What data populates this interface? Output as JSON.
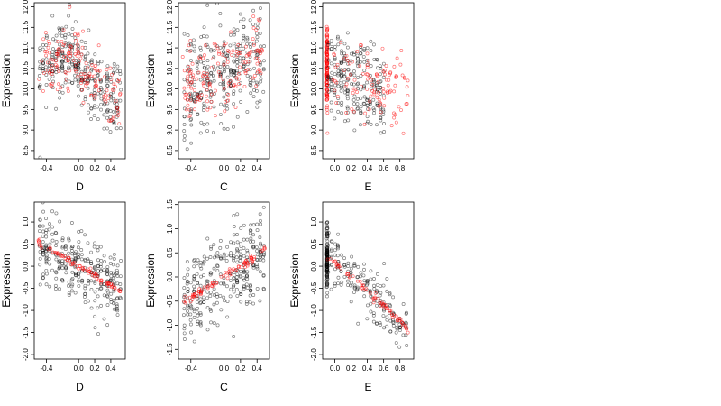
{
  "figure": {
    "background": "#ffffff",
    "colors": {
      "points_black": "#000000",
      "points_red": "#ff0000"
    }
  },
  "chart_data": [
    {
      "type": "scatter",
      "xlabel": "D",
      "ylabel": "Expression",
      "xlim": [
        -0.55,
        0.58
      ],
      "ylim": [
        8.3,
        12.1
      ],
      "xticks": [
        -0.4,
        0.0,
        0.2,
        0.4
      ],
      "xtick_labels": [
        "-0.4",
        "0.0",
        "0.2",
        "0.4"
      ],
      "yticks": [
        8.5,
        9.0,
        9.5,
        10.0,
        10.5,
        11.0,
        11.5,
        12.0
      ],
      "ytick_labels": [
        "8.5",
        "9.0",
        "9.5",
        "10.0",
        "10.5",
        "11.0",
        "11.5",
        "12.0"
      ],
      "series": [
        {
          "color": "#000000",
          "n": 300,
          "x_range": [
            -0.5,
            0.52
          ],
          "trend": [
            [
              -0.5,
              10.4
            ],
            [
              -0.1,
              10.9
            ],
            [
              0.0,
              10.6
            ],
            [
              0.2,
              10.0
            ],
            [
              0.5,
              9.7
            ]
          ],
          "spread": 0.5
        },
        {
          "color": "#ff0000",
          "n": 150,
          "x_range": [
            -0.5,
            0.52
          ],
          "trend": [
            [
              -0.5,
              10.5
            ],
            [
              -0.1,
              10.9
            ],
            [
              0.0,
              10.6
            ],
            [
              0.2,
              10.1
            ],
            [
              0.5,
              9.8
            ]
          ],
          "spread": 0.4
        }
      ]
    },
    {
      "type": "scatter",
      "xlabel": "C",
      "ylabel": "Expression",
      "xlim": [
        -0.55,
        0.55
      ],
      "ylim": [
        8.3,
        12.1
      ],
      "xticks": [
        -0.4,
        0.0,
        0.2,
        0.4
      ],
      "xtick_labels": [
        "-0.4",
        "0.0",
        "0.2",
        "0.4"
      ],
      "yticks": [
        8.5,
        9.0,
        9.5,
        10.0,
        10.5,
        11.0,
        11.5,
        12.0
      ],
      "ytick_labels": [
        "8.5",
        "9.0",
        "9.5",
        "10.0",
        "10.5",
        "11.0",
        "11.5",
        "12.0"
      ],
      "series": [
        {
          "color": "#000000",
          "n": 300,
          "x_range": [
            -0.5,
            0.5
          ],
          "trend": [
            [
              -0.5,
              10.0
            ],
            [
              0.0,
              10.4
            ],
            [
              0.5,
              10.9
            ]
          ],
          "spread": 0.6
        },
        {
          "color": "#ff0000",
          "n": 150,
          "x_range": [
            -0.5,
            0.5
          ],
          "trend": [
            [
              -0.5,
              10.0
            ],
            [
              0.0,
              10.4
            ],
            [
              0.5,
              10.9
            ]
          ],
          "spread": 0.45
        }
      ]
    },
    {
      "type": "scatter",
      "xlabel": "E",
      "ylabel": "Expression",
      "xlim": [
        -0.15,
        0.97
      ],
      "ylim": [
        8.3,
        12.1
      ],
      "xticks": [
        0.0,
        0.2,
        0.4,
        0.6,
        0.8
      ],
      "xtick_labels": [
        "0.0",
        "0.2",
        "0.4",
        "0.6",
        "0.8"
      ],
      "yticks": [
        8.5,
        9.0,
        9.5,
        10.0,
        10.5,
        11.0,
        11.5,
        12.0
      ],
      "ytick_labels": [
        "8.5",
        "9.0",
        "9.5",
        "10.0",
        "10.5",
        "11.0",
        "11.5",
        "12.0"
      ],
      "series": [
        {
          "color": "#ff0000",
          "n": 120,
          "x_range": [
            -0.1,
            -0.09
          ],
          "trend": [
            [
              -0.1,
              10.5
            ],
            [
              -0.09,
              10.5
            ]
          ],
          "spread": 0.6
        },
        {
          "color": "#000000",
          "n": 230,
          "x_range": [
            -0.1,
            0.6
          ],
          "trend": [
            [
              -0.1,
              10.4
            ],
            [
              0.2,
              10.2
            ],
            [
              0.6,
              9.9
            ]
          ],
          "spread": 0.55
        },
        {
          "color": "#ff0000",
          "n": 110,
          "x_range": [
            -0.05,
            0.9
          ],
          "trend": [
            [
              -0.05,
              10.5
            ],
            [
              0.3,
              10.2
            ],
            [
              0.9,
              9.8
            ]
          ],
          "spread": 0.45
        }
      ]
    },
    {
      "type": "scatter",
      "xlabel": "D",
      "ylabel": "Expression",
      "xlim": [
        -0.55,
        0.58
      ],
      "ylim": [
        -2.1,
        1.45
      ],
      "xticks": [
        -0.4,
        0.0,
        0.2,
        0.4
      ],
      "xtick_labels": [
        "-0.4",
        "0.0",
        "0.2",
        "0.4"
      ],
      "yticks": [
        -2.0,
        -1.5,
        -1.0,
        -0.5,
        0.0,
        0.5,
        1.0
      ],
      "ytick_labels": [
        "-2.0",
        "-1.5",
        "-1.0",
        "-0.5",
        "0.0",
        "0.5",
        "1.0"
      ],
      "series": [
        {
          "color": "#000000",
          "n": 300,
          "x_range": [
            -0.5,
            0.52
          ],
          "trend": [
            [
              -0.5,
              0.5
            ],
            [
              0.5,
              -0.5
            ]
          ],
          "spread": 0.4
        },
        {
          "color": "#ff0000",
          "n": 80,
          "x_range": [
            -0.5,
            0.52
          ],
          "trend": [
            [
              -0.5,
              0.55
            ],
            [
              0.5,
              -0.55
            ]
          ],
          "spread": 0.04
        }
      ]
    },
    {
      "type": "scatter",
      "xlabel": "C",
      "ylabel": "Expression",
      "xlim": [
        -0.55,
        0.55
      ],
      "ylim": [
        -1.7,
        1.55
      ],
      "xticks": [
        -0.4,
        0.0,
        0.2,
        0.4
      ],
      "xtick_labels": [
        "-0.4",
        "0.0",
        "0.2",
        "0.4"
      ],
      "yticks": [
        -1.5,
        -1.0,
        -0.5,
        0.0,
        0.5,
        1.0,
        1.5
      ],
      "ytick_labels": [
        "-1.5",
        "-1.0",
        "-0.5",
        "0.0",
        "0.5",
        "1.0",
        "1.5"
      ],
      "series": [
        {
          "color": "#000000",
          "n": 300,
          "x_range": [
            -0.5,
            0.5
          ],
          "trend": [
            [
              -0.5,
              -0.5
            ],
            [
              0.5,
              0.5
            ]
          ],
          "spread": 0.45
        },
        {
          "color": "#ff0000",
          "n": 80,
          "x_range": [
            -0.5,
            0.5
          ],
          "trend": [
            [
              -0.5,
              -0.55
            ],
            [
              0.5,
              0.55
            ]
          ],
          "spread": 0.04
        }
      ]
    },
    {
      "type": "scatter",
      "xlabel": "E",
      "ylabel": "Expression",
      "xlim": [
        -0.15,
        0.97
      ],
      "ylim": [
        -2.1,
        1.45
      ],
      "xticks": [
        0.0,
        0.2,
        0.4,
        0.6,
        0.8
      ],
      "xtick_labels": [
        "0.0",
        "0.2",
        "0.4",
        "0.6",
        "0.8"
      ],
      "yticks": [
        -2.0,
        -1.5,
        -1.0,
        -0.5,
        0.0,
        0.5,
        1.0
      ],
      "ytick_labels": [
        "-2.0",
        "-1.5",
        "-1.0",
        "-0.5",
        "0.0",
        "0.5",
        "1.0"
      ],
      "series": [
        {
          "color": "#000000",
          "n": 120,
          "x_range": [
            -0.1,
            -0.09
          ],
          "trend": [
            [
              -0.1,
              0.2
            ],
            [
              -0.09,
              0.2
            ]
          ],
          "spread": 0.4
        },
        {
          "color": "#000000",
          "n": 180,
          "x_range": [
            -0.1,
            0.9
          ],
          "trend": [
            [
              -0.1,
              0.3
            ],
            [
              0.6,
              -0.9
            ],
            [
              0.9,
              -1.4
            ]
          ],
          "spread": 0.35
        },
        {
          "color": "#ff0000",
          "n": 70,
          "x_range": [
            -0.1,
            0.92
          ],
          "trend": [
            [
              -0.1,
              0.25
            ],
            [
              0.6,
              -0.9
            ],
            [
              0.92,
              -1.45
            ]
          ],
          "spread": 0.04
        }
      ]
    }
  ]
}
